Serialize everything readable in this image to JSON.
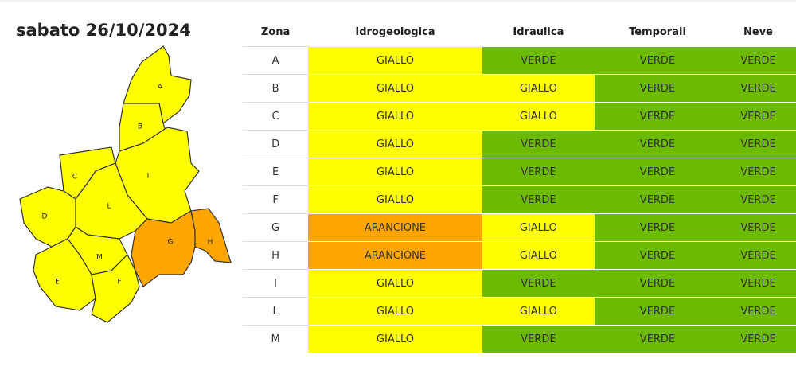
{
  "header": {
    "title": "sabato 26/10/2024"
  },
  "table": {
    "columns": [
      "Zona",
      "Idrogeologica",
      "Idraulica",
      "Temporali",
      "Neve"
    ],
    "rows": [
      [
        "A",
        "GIALLO",
        "VERDE",
        "VERDE",
        "VERDE"
      ],
      [
        "B",
        "GIALLO",
        "GIALLO",
        "VERDE",
        "VERDE"
      ],
      [
        "C",
        "GIALLO",
        "GIALLO",
        "VERDE",
        "VERDE"
      ],
      [
        "D",
        "GIALLO",
        "VERDE",
        "VERDE",
        "VERDE"
      ],
      [
        "E",
        "GIALLO",
        "VERDE",
        "VERDE",
        "VERDE"
      ],
      [
        "F",
        "GIALLO",
        "VERDE",
        "VERDE",
        "VERDE"
      ],
      [
        "G",
        "ARANCIONE",
        "GIALLO",
        "VERDE",
        "VERDE"
      ],
      [
        "H",
        "ARANCIONE",
        "GIALLO",
        "VERDE",
        "VERDE"
      ],
      [
        "I",
        "GIALLO",
        "VERDE",
        "VERDE",
        "VERDE"
      ],
      [
        "L",
        "GIALLO",
        "GIALLO",
        "VERDE",
        "VERDE"
      ],
      [
        "M",
        "GIALLO",
        "VERDE",
        "VERDE",
        "VERDE"
      ]
    ]
  },
  "colors": {
    "GIALLO": "#ffff00",
    "VERDE": "#6dbb00",
    "ARANCIONE": "#ffa500"
  }
}
